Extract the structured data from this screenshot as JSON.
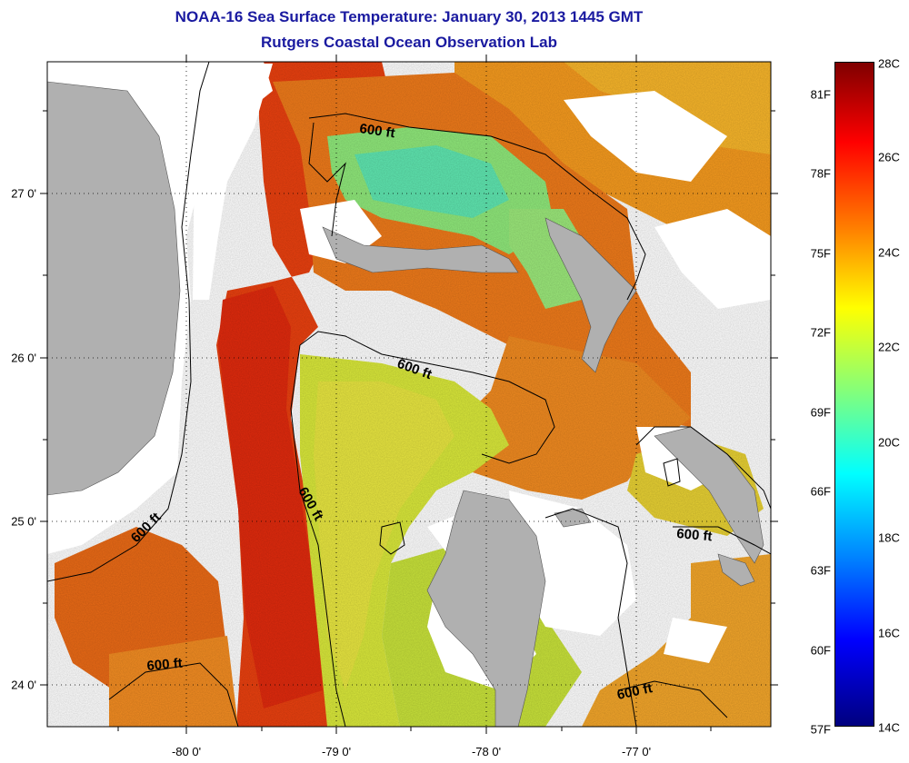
{
  "title_line1": "NOAA-16 Sea Surface Temperature:  January 30, 2013 1445 GMT",
  "title_line2": "Rutgers Coastal Ocean Observation Lab",
  "x_ticks": [
    "-80 0'",
    "-79 0'",
    "-78 0'",
    "-77 0'"
  ],
  "y_ticks": [
    "27 0'",
    "26 0'",
    "25 0'",
    "24 0'"
  ],
  "contour_labels": [
    "600 ft",
    "600 ft",
    "600 ft",
    "600 ft",
    "600 ft",
    "600 ft",
    "600 ft"
  ],
  "colorbar": {
    "fahrenheit": [
      "81F",
      "78F",
      "75F",
      "72F",
      "69F",
      "66F",
      "63F",
      "60F",
      "57F"
    ],
    "celsius": [
      "28C",
      "26C",
      "24C",
      "22C",
      "20C",
      "18C",
      "16C",
      "14C"
    ],
    "colors": [
      "#00007f",
      "#0000ff",
      "#007fff",
      "#00ffff",
      "#7fff7f",
      "#ffff00",
      "#ff7f00",
      "#ff0000",
      "#7f0000"
    ]
  },
  "land_color": "#b0b0b0"
}
